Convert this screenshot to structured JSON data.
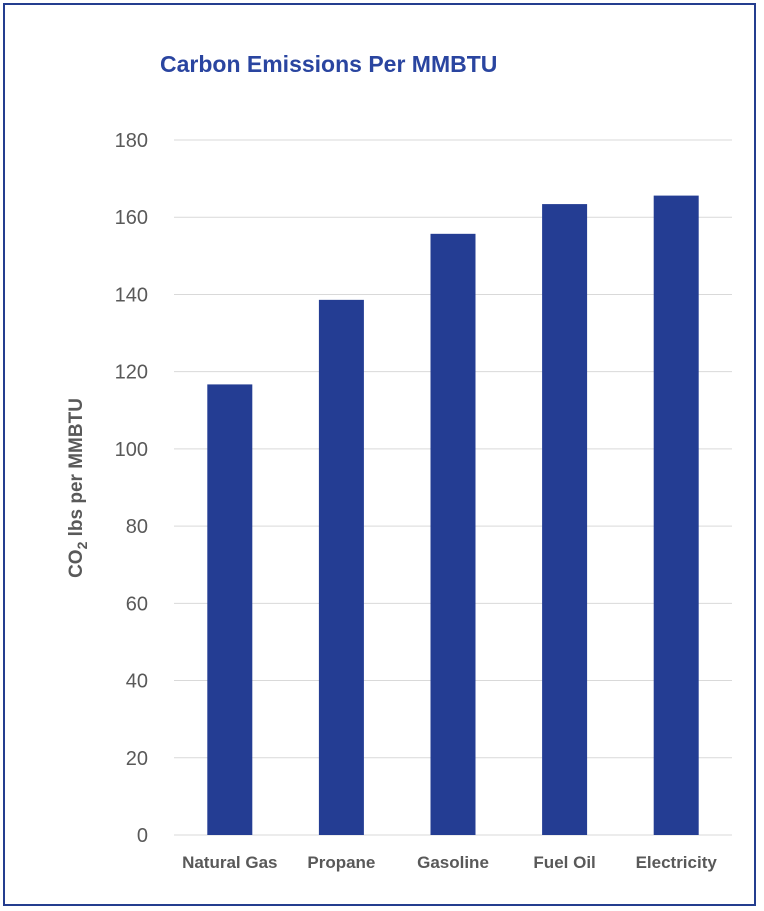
{
  "chart_data": {
    "type": "bar",
    "title": "Carbon Emissions Per MMBTU",
    "ylabel": {
      "prefix": "CO",
      "subscript": "2",
      "suffix": " lbs per MMBTU"
    },
    "xlabel": "",
    "categories": [
      "Natural Gas",
      "Propane",
      "Gasoline",
      "Fuel Oil",
      "Electricity"
    ],
    "values": [
      116.7,
      138.6,
      155.7,
      163.4,
      165.6
    ],
    "ylim": [
      0,
      180
    ],
    "yticks": [
      0,
      20,
      40,
      60,
      80,
      100,
      120,
      140,
      160,
      180
    ],
    "bar_color": "#243d93",
    "grid": true,
    "legend": "none"
  }
}
